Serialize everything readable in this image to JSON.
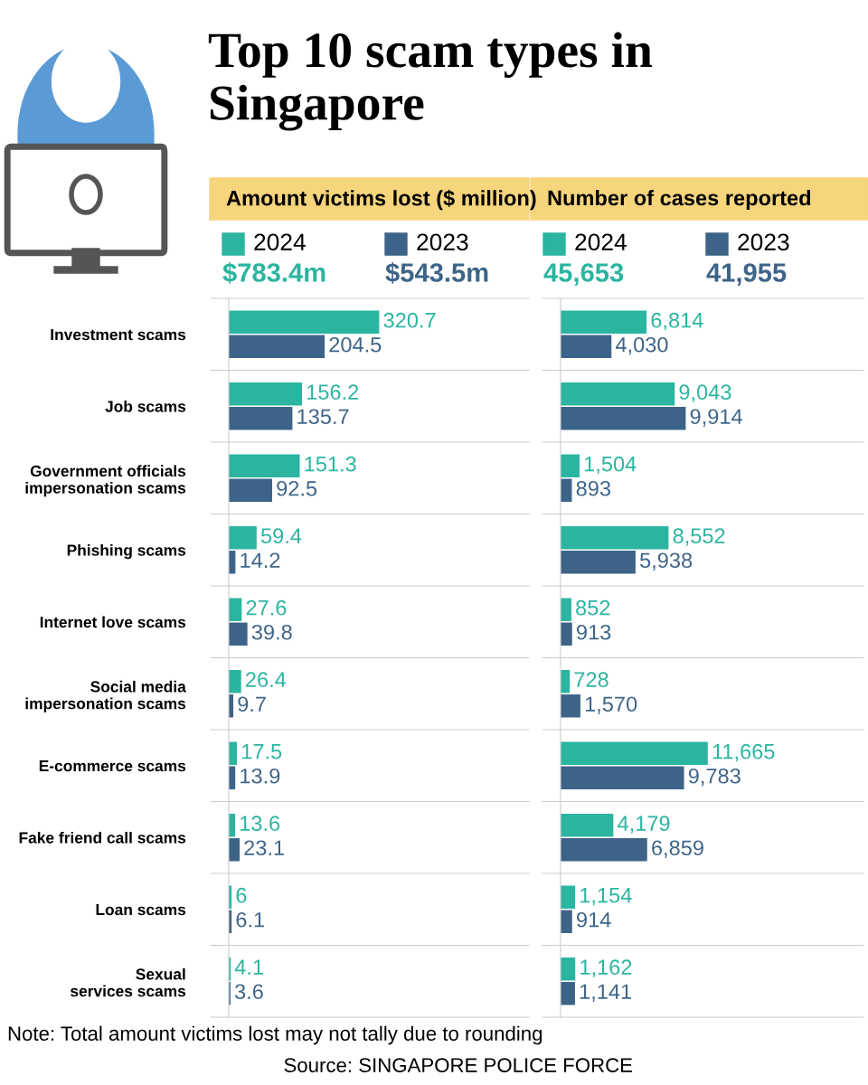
{
  "chart_data": [
    {
      "type": "bar",
      "orientation": "horizontal",
      "title": "Top 10 scam types in Singapore",
      "subtitle": "Amount victims lost ($ million)",
      "categories": [
        "Investment scams",
        "Job scams",
        "Government officials\nimpersonation scams",
        "Phishing scams",
        "Internet love scams",
        "Social media\nimpersonation scams",
        "E-commerce scams",
        "Fake friend call scams",
        "Loan scams",
        "Sexual\nservices scams"
      ],
      "series": [
        {
          "name": "2024",
          "color": "#2bb5a0",
          "values": [
            320.7,
            156.2,
            151.3,
            59.4,
            27.6,
            26.4,
            17.5,
            13.6,
            6,
            4.1
          ]
        },
        {
          "name": "2023",
          "color": "#3d6488",
          "values": [
            204.5,
            135.7,
            92.5,
            14.2,
            39.8,
            9.7,
            13.9,
            23.1,
            6.1,
            3.6
          ]
        }
      ],
      "xlim": [
        0,
        640
      ],
      "data_labels": true,
      "legend": "top",
      "tick_labels": "y",
      "grid": false,
      "annotations": [
        "$783.4m",
        "$543.5m",
        "Note: Total amount victims lost may not tally due to rounding",
        "Source: SINGAPORE POLICE FORCE"
      ]
    },
    {
      "type": "bar",
      "orientation": "horizontal",
      "subtitle": "Number of cases reported",
      "categories": [
        null,
        null,
        null,
        null,
        null,
        null,
        null,
        null,
        null,
        null
      ],
      "series": [
        {
          "name": "2024",
          "color": "#2bb5a0",
          "values": [
            6814,
            9043,
            1504,
            8552,
            852,
            728,
            11665,
            4179,
            1154,
            1162
          ],
          "value_labels": [
            "6,814",
            "9,043",
            "1,504",
            "8,552",
            "852",
            "728",
            "11,665",
            "4,179",
            "1,154",
            "1,162"
          ]
        },
        {
          "name": "2023",
          "color": "#3d6488",
          "values": [
            4030,
            9914,
            893,
            5938,
            913,
            1570,
            9783,
            6859,
            914,
            1141
          ],
          "value_labels": [
            "4,030",
            "9,914",
            "893",
            "5,938",
            "913",
            "1,570",
            "9,783",
            "6,859",
            "914",
            "1,141"
          ]
        }
      ],
      "xlim": [
        0,
        24000
      ],
      "legend": "top",
      "tick_labels": false,
      "grid": false,
      "annotations": [
        "45,653",
        "41,955"
      ]
    }
  ]
}
